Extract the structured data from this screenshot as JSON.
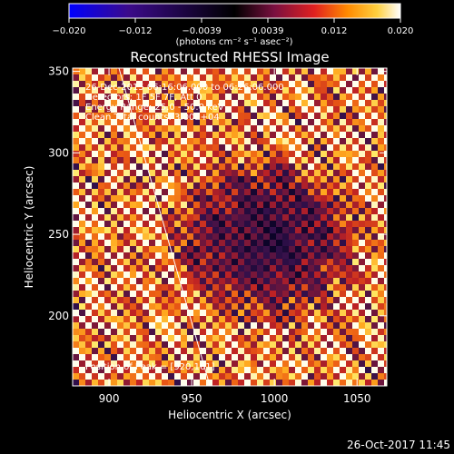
{
  "colorbar": {
    "ticks": [
      "−0.020",
      "−0.012",
      "−0.0039",
      "0.0039",
      "0.012",
      "0.020"
    ],
    "unit_label": "(photons cm⁻² s⁻¹ asec⁻²)",
    "range": [
      -0.02,
      0.02
    ],
    "colors": [
      "#0000ff",
      "#3b0a8a",
      "#000000",
      "#7a1040",
      "#e02020",
      "#ff8a00",
      "#ffd040",
      "#ffffff"
    ]
  },
  "chart_data": {
    "type": "heatmap",
    "title": "Reconstructed RHESSI Image",
    "xlabel": "Heliocentric X (arcsec)",
    "ylabel": "Heliocentric Y (arcsec)",
    "xlim": [
      878,
      1068
    ],
    "ylim": [
      157,
      352
    ],
    "xticks": [
      {
        "value": 900,
        "label": "900"
      },
      {
        "value": 950,
        "label": "950"
      },
      {
        "value": 1000,
        "label": "1000"
      },
      {
        "value": 1050,
        "label": "1050"
      }
    ],
    "yticks": [
      {
        "value": 200,
        "label": "200"
      },
      {
        "value": 250,
        "label": "250"
      },
      {
        "value": 300,
        "label": "300"
      },
      {
        "value": 350,
        "label": "350"
      }
    ],
    "annotations": [
      "26-Dec-2015 06:16:06.000 to 06:26:06.000",
      "Detectors: 1F 5F 7F, Att 0",
      "Energy Range: 25.0 - 50.0 keV",
      "Clean     Total counts: 3.00E+04"
    ],
    "peak_label": "Position of Peak = [920,161]",
    "limb_line": [
      [
        906,
        352
      ],
      [
        961,
        157
      ]
    ],
    "grid": false
  },
  "footer": {
    "timestamp": "26-Oct-2017 11:45"
  }
}
